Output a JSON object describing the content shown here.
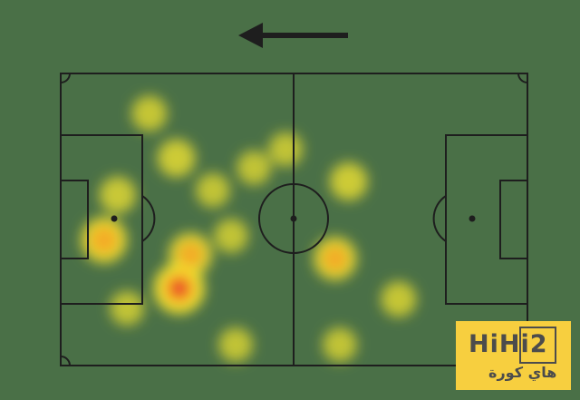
{
  "chart_data": {
    "type": "heatmap",
    "title": "",
    "pitch": {
      "length": 100,
      "width": 100
    },
    "attack_direction": "left",
    "colormap": [
      "#f2e530",
      "#f5a623",
      "#e8232a"
    ],
    "points": [
      {
        "x": 25.4,
        "y": 73.6,
        "intensity": 1.0
      },
      {
        "x": 27.8,
        "y": 62.0,
        "intensity": 0.7
      },
      {
        "x": 9.3,
        "y": 57.0,
        "intensity": 0.8
      },
      {
        "x": 58.8,
        "y": 63.4,
        "intensity": 0.7
      },
      {
        "x": 61.7,
        "y": 37.0,
        "intensity": 0.5
      },
      {
        "x": 24.8,
        "y": 29.0,
        "intensity": 0.5
      },
      {
        "x": 19.0,
        "y": 13.7,
        "intensity": 0.4
      },
      {
        "x": 12.2,
        "y": 41.6,
        "intensity": 0.45
      },
      {
        "x": 32.6,
        "y": 40.0,
        "intensity": 0.35
      },
      {
        "x": 41.4,
        "y": 32.3,
        "intensity": 0.35
      },
      {
        "x": 48.2,
        "y": 26.0,
        "intensity": 0.35
      },
      {
        "x": 72.4,
        "y": 77.3,
        "intensity": 0.4
      },
      {
        "x": 59.8,
        "y": 92.9,
        "intensity": 0.35
      },
      {
        "x": 37.5,
        "y": 92.9,
        "intensity": 0.35
      },
      {
        "x": 36.5,
        "y": 55.6,
        "intensity": 0.35
      },
      {
        "x": 14.2,
        "y": 80.4,
        "intensity": 0.35
      }
    ]
  },
  "colors": {
    "background": "#4a7047",
    "lines": "#1e1e1e",
    "logo_bg": "#f7cf3f",
    "logo_text": "#4c4c4c"
  },
  "logo": {
    "main": "HiHi2",
    "sub": "هاي كورة"
  }
}
